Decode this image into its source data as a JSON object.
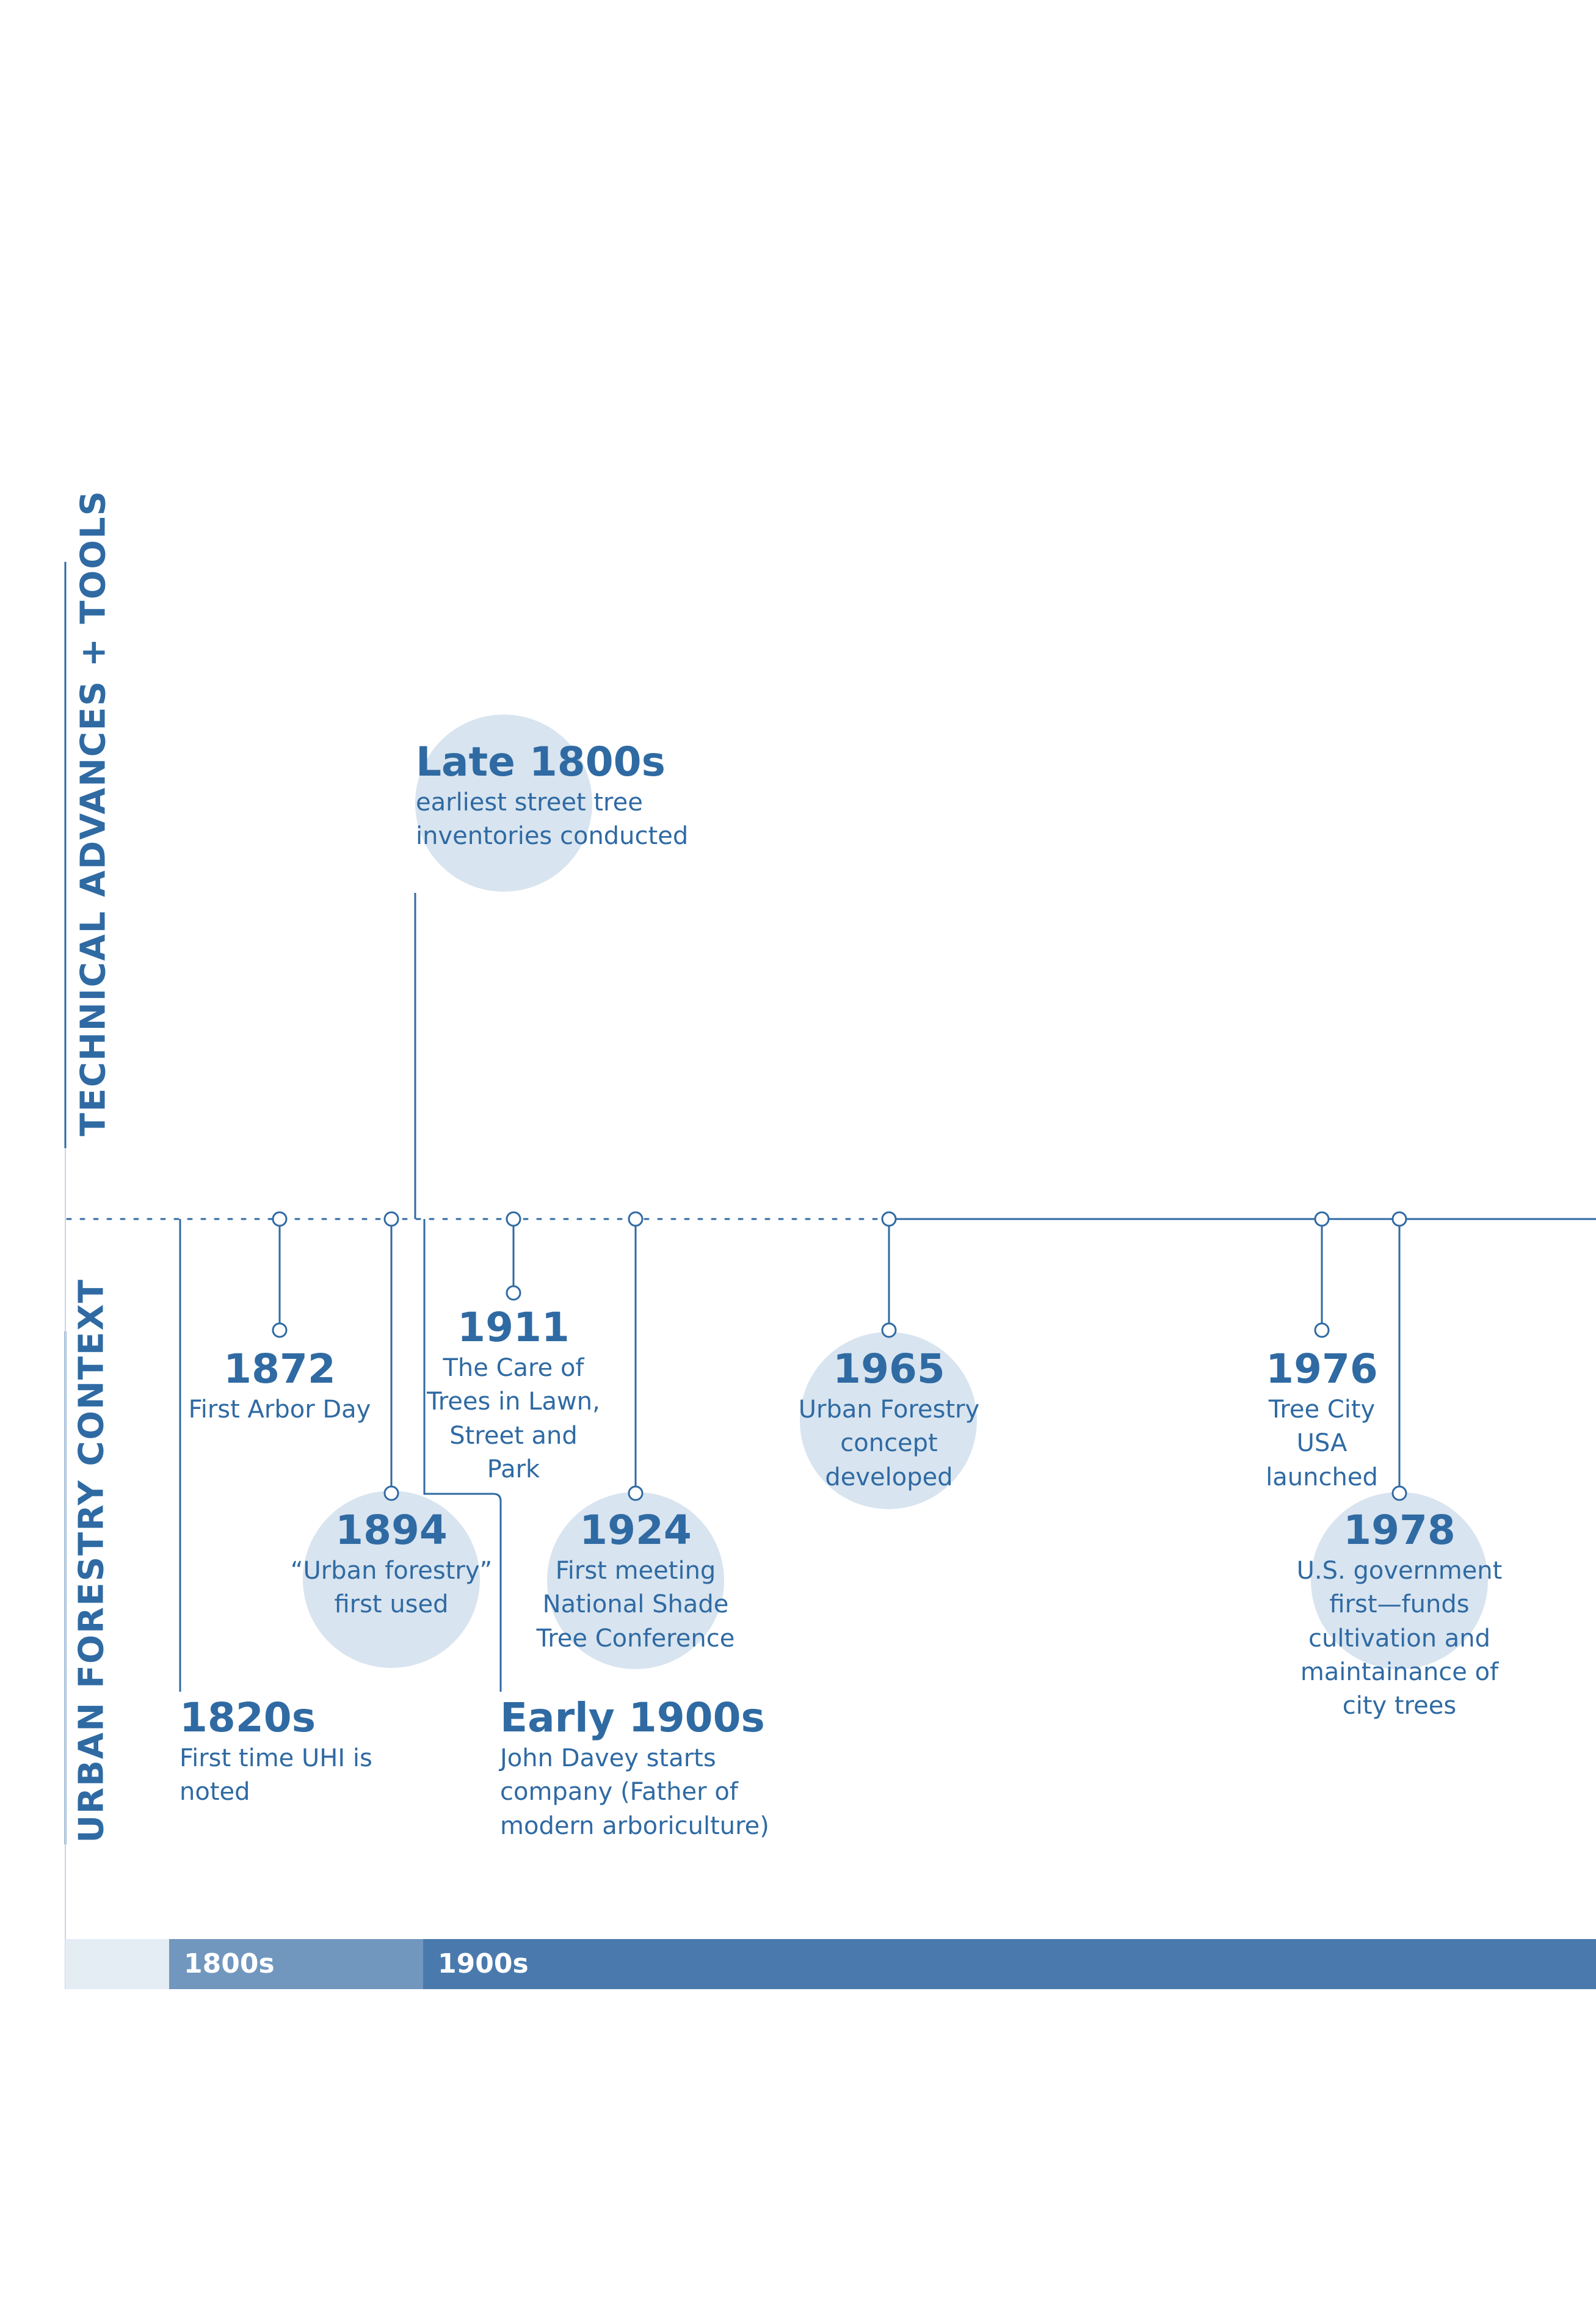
{
  "sections": {
    "technical": "TECHNICAL ADVANCES + TOOLS",
    "context": "URBAN FORESTRY CONTEXT"
  },
  "events": {
    "late1800s": {
      "year": "Late 1800s",
      "lines": [
        "earliest street tree",
        "inventories conducted"
      ]
    },
    "e1872": {
      "year": "1872",
      "lines": [
        "First Arbor Day"
      ]
    },
    "e1894": {
      "year": "1894",
      "lines": [
        "“Urban forestry”",
        "first used"
      ]
    },
    "e1820s": {
      "year": "1820s",
      "lines": [
        "First time UHI is",
        "noted"
      ]
    },
    "e1911": {
      "year": "1911",
      "lines": [
        "The Care of",
        "Trees in Lawn,",
        "Street and",
        "Park"
      ]
    },
    "e1924": {
      "year": "1924",
      "lines": [
        "First meeting",
        "National Shade",
        "Tree Conference"
      ]
    },
    "early1900s": {
      "year": "Early 1900s",
      "lines": [
        "John Davey starts",
        "company (Father of",
        "modern arboriculture)"
      ]
    },
    "e1965": {
      "year": "1965",
      "lines": [
        "Urban Forestry",
        "concept",
        "developed"
      ]
    },
    "e1976": {
      "year": "1976",
      "lines": [
        "Tree City",
        "USA",
        "launched"
      ]
    },
    "e1978": {
      "year": "1978",
      "lines": [
        "U.S. government",
        "first—funds",
        "cultivation and",
        "maintainance of",
        "city trees"
      ]
    }
  },
  "eras": {
    "e1800s": "1800s",
    "e1900s": "1900s"
  },
  "colors": {
    "primary": "#2f6aa3",
    "circle": "#d8e4ef",
    "era_pre": "#e4ecf4",
    "era_1800s": "#7197be",
    "era_1900s": "#4a7aad"
  }
}
